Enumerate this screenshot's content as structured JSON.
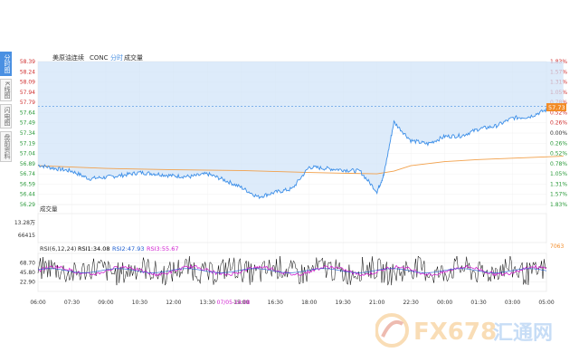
{
  "sidebar": {
    "tabs": [
      {
        "label": "分时图",
        "active": true
      },
      {
        "label": "K线图",
        "active": false
      },
      {
        "label": "闪电图",
        "active": false
      },
      {
        "label": "盘前资料",
        "active": false
      }
    ]
  },
  "header": {
    "instrument": "美原油连续",
    "code": "CONC",
    "mode": "分时",
    "volume_label": "成交量"
  },
  "chart_data": {
    "type": "line",
    "price_axis": {
      "ticks": [
        "58.39",
        "58.24",
        "58.09",
        "57.94",
        "57.79",
        "57.64",
        "57.49",
        "57.34",
        "57.19",
        "57.04",
        "56.89",
        "56.74",
        "56.59",
        "56.44",
        "56.29"
      ],
      "ylim": [
        56.29,
        58.39
      ]
    },
    "percent_axis": {
      "ticks": [
        "1.83%",
        "1.57%",
        "1.31%",
        "1.05%",
        "0.78%",
        "0.52%",
        "0.26%",
        "0.00%",
        "0.26%",
        "0.52%",
        "0.78%",
        "1.05%",
        "1.31%",
        "1.57%",
        "1.83%"
      ]
    },
    "time_axis": [
      "06:00",
      "07:30",
      "09:00",
      "10:30",
      "12:00",
      "13:30",
      "15:00",
      "16:30",
      "18:00",
      "19:30",
      "21:00",
      "22:30",
      "00:00",
      "01:30",
      "03:00",
      "05:00"
    ],
    "cursor_date": "07/05-14:08",
    "last_price_label": "57.73",
    "reference_price": 57.73,
    "price_series": {
      "name": "price",
      "x": [
        0,
        0.5,
        1,
        1.5,
        2,
        2.5,
        3,
        3.5,
        4,
        4.5,
        5,
        5.5,
        6,
        6.5,
        7,
        7.5,
        8,
        8.5,
        9,
        9.5,
        10,
        10.2,
        10.5,
        11,
        11.5,
        12,
        12.5,
        13,
        13.5,
        14,
        14.5,
        15,
        15.5
      ],
      "y": [
        56.87,
        56.82,
        56.78,
        56.67,
        56.69,
        56.72,
        56.76,
        56.74,
        56.71,
        56.7,
        56.74,
        56.65,
        56.54,
        56.4,
        56.47,
        56.52,
        56.84,
        56.82,
        56.8,
        56.78,
        56.48,
        56.72,
        57.5,
        57.23,
        57.18,
        57.29,
        57.3,
        57.4,
        57.44,
        57.56,
        57.58,
        57.68,
        57.75
      ]
    },
    "average_series": {
      "name": "average",
      "x": [
        0,
        2,
        4,
        6,
        8,
        10,
        10.5,
        11,
        12,
        13,
        14,
        15,
        15.5
      ],
      "y": [
        56.86,
        56.82,
        56.8,
        56.79,
        56.76,
        56.74,
        56.78,
        56.86,
        56.92,
        56.95,
        56.97,
        56.99,
        57.0
      ]
    },
    "volume_panel": {
      "label": "成交量",
      "ticks": [
        "13.28万",
        "66415"
      ],
      "right_label": "7063"
    },
    "rsi_panel": {
      "legend": "RSI(6,12,24)",
      "series": [
        {
          "name": "RSI1",
          "value": "34.08",
          "color": "#000000"
        },
        {
          "name": "RSI2",
          "value": "47.93",
          "color": "#1f5fd0"
        },
        {
          "name": "RSI3",
          "value": "55.67",
          "color": "#d020d0"
        }
      ],
      "ticks": [
        "68.70",
        "45.80",
        "22.90"
      ]
    }
  },
  "watermark": {
    "text": "FX678",
    "suffix": "汇通网"
  }
}
